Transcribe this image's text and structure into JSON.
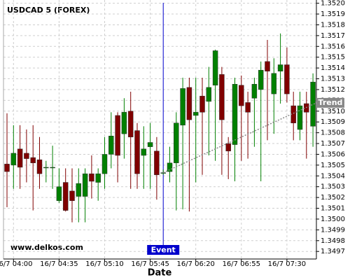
{
  "chart_data": {
    "type": "candlestick",
    "title": "USDCAD 5 (FOREX)",
    "watermark": "www.delkos.com",
    "xlabel": "Date",
    "categories": [
      null,
      "16/7 04:00",
      null,
      null,
      null,
      null,
      null,
      null,
      "16/7 04:35",
      null,
      null,
      null,
      null,
      null,
      null,
      "16/7 05:10",
      null,
      null,
      null,
      null,
      null,
      null,
      "16/7 05:45",
      null,
      null,
      null,
      null,
      null,
      null,
      "16/7 06:20",
      null,
      null,
      null,
      null,
      null,
      null,
      "16/7 06:55",
      null,
      null,
      null,
      null,
      null,
      null,
      "16/7 07:30",
      null,
      null,
      null,
      null
    ],
    "open": [
      1.35051,
      1.3505,
      1.35065,
      1.35061,
      1.35057,
      1.35055,
      1.35048,
      1.35048,
      1.35017,
      1.35034,
      1.35026,
      1.35021,
      1.35021,
      1.35042,
      1.35034,
      1.35042,
      1.3506,
      1.35096,
      1.35079,
      1.351,
      1.35082,
      1.35059,
      1.35067,
      1.35063,
      1.35043,
      1.35044,
      1.35052,
      1.35087,
      1.35122,
      1.35096,
      1.35114,
      1.35109,
      1.35124,
      1.35134,
      1.3507,
      1.35069,
      1.35124,
      1.35108,
      1.35112,
      1.3512,
      1.35146,
      1.35116,
      1.35137,
      1.35143,
      1.35105,
      1.35083,
      1.35107,
      1.35086
    ],
    "high": [
      1.35098,
      1.35087,
      1.35087,
      1.35083,
      1.35087,
      1.35076,
      1.35054,
      1.35068,
      1.35047,
      1.35047,
      1.35047,
      1.35047,
      1.35047,
      1.35059,
      1.35047,
      1.35076,
      1.35099,
      1.35099,
      1.35112,
      1.35118,
      1.35089,
      1.35086,
      1.35089,
      1.35076,
      1.35046,
      1.35067,
      1.35099,
      1.35131,
      1.35131,
      1.35131,
      1.35131,
      1.35141,
      1.35157,
      1.35141,
      1.35076,
      1.35131,
      1.35133,
      1.35118,
      1.35131,
      1.35146,
      1.35166,
      1.35149,
      1.35172,
      1.35159,
      1.35118,
      1.35118,
      1.35118,
      1.35135
    ],
    "low": [
      1.35011,
      1.35028,
      1.35028,
      1.35034,
      1.35008,
      1.35028,
      1.35034,
      1.35028,
      1.35015,
      1.35007,
      1.34997,
      1.34997,
      1.34997,
      1.35019,
      1.35017,
      1.35028,
      1.35047,
      1.35034,
      1.35056,
      1.35028,
      1.35028,
      1.35028,
      1.35028,
      1.35018,
      1.35041,
      1.35034,
      1.35008,
      1.35009,
      1.35007,
      1.35034,
      1.35041,
      1.35059,
      1.35054,
      1.35041,
      1.35037,
      1.35035,
      1.35054,
      1.35056,
      1.35067,
      1.35035,
      1.35073,
      1.35079,
      1.35107,
      1.35108,
      1.35073,
      1.35073,
      1.35056,
      1.35067
    ],
    "close": [
      1.35044,
      1.35061,
      1.35048,
      1.35056,
      1.35052,
      1.35042,
      1.35048,
      1.35048,
      1.3503,
      1.35008,
      1.35017,
      1.35033,
      1.35042,
      1.35035,
      1.35042,
      1.3506,
      1.35077,
      1.35059,
      1.35099,
      1.35076,
      1.35042,
      1.35065,
      1.35071,
      1.35041,
      1.35043,
      1.35052,
      1.35089,
      1.35121,
      1.35092,
      1.35099,
      1.35099,
      1.35122,
      1.35156,
      1.35092,
      1.35063,
      1.35125,
      1.35105,
      1.35099,
      1.35125,
      1.35138,
      1.35137,
      1.35135,
      1.35143,
      1.35116,
      1.35089,
      1.35105,
      1.35099,
      1.35127
    ],
    "up_color": "#008000",
    "down_color": "#800000",
    "ylim": [
      1.34963,
      1.35203
    ],
    "yticks": [
      1.3497,
      1.3498,
      1.3499,
      {
        "value": 1.35,
        "label": "1.3500"
      },
      1.3501,
      1.3502,
      1.3503,
      1.3504,
      1.3505,
      1.3506,
      1.3507,
      1.3508,
      1.3509,
      {
        "value": 1.351,
        "label": "1.3510"
      },
      1.3511,
      1.3512,
      1.3513,
      1.3514,
      1.3515,
      1.3516,
      1.3517,
      1.3518,
      1.3519,
      {
        "value": 1.352,
        "label": "1.3520"
      }
    ],
    "grid": true,
    "event": {
      "label": "Event",
      "index": 24,
      "color": "#0000cc"
    },
    "trend": {
      "label": "Trend",
      "start": [
        24,
        1.35043
      ],
      "end": [
        44,
        1.35098
      ],
      "color": "#888888"
    }
  }
}
